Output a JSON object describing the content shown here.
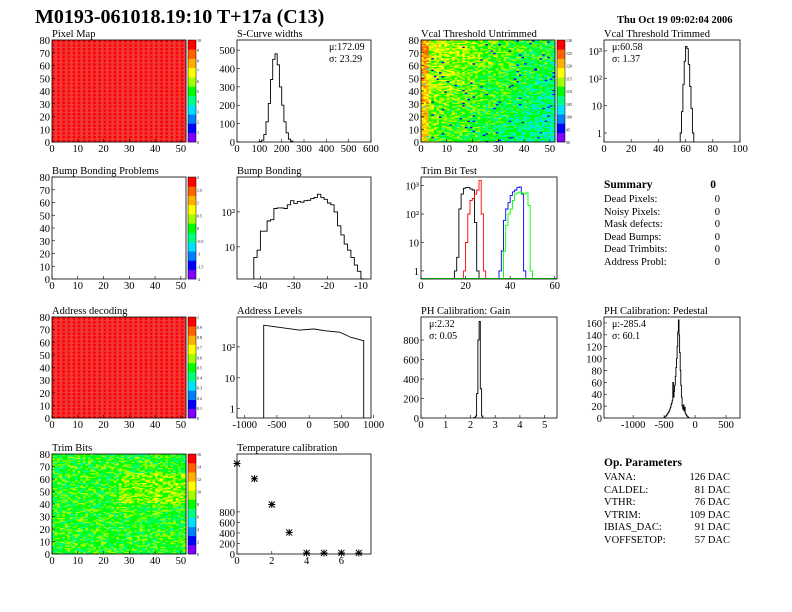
{
  "header": {
    "title": "M0193-061018.19:10 T+17a (C13)",
    "date": "Thu Oct 19 09:02:04 2006"
  },
  "colors": {
    "frame": "#000000",
    "hist": "#000000",
    "trim_series": [
      "#000000",
      "#ff0000",
      "#0000ff",
      "#00ff00"
    ],
    "palette": [
      "#8000ff",
      "#0000ff",
      "#0080ff",
      "#00e0ff",
      "#00ff80",
      "#00ff00",
      "#a0ff00",
      "#ffff00",
      "#ffb000",
      "#ff6000",
      "#ff0000"
    ]
  },
  "summary": {
    "title": "Summary",
    "total": "0",
    "rows": [
      {
        "label": "Dead Pixels:",
        "value": "0"
      },
      {
        "label": "Noisy Pixels:",
        "value": "0"
      },
      {
        "label": "Mask defects:",
        "value": "0"
      },
      {
        "label": "Dead Bumps:",
        "value": "0"
      },
      {
        "label": "Dead Trimbits:",
        "value": "0"
      },
      {
        "label": "Address Probl:",
        "value": "0"
      }
    ]
  },
  "op_parameters": {
    "title": "Op. Parameters",
    "rows": [
      {
        "label": "VANA:",
        "value": "126 DAC"
      },
      {
        "label": "CALDEL:",
        "value": "81 DAC"
      },
      {
        "label": "VTHR:",
        "value": "76 DAC"
      },
      {
        "label": "VTRIM:",
        "value": "109 DAC"
      },
      {
        "label": "IBIAS_DAC:",
        "value": "91 DAC"
      },
      {
        "label": "VOFFSETOP:",
        "value": "57 DAC"
      }
    ]
  },
  "chart_data": [
    {
      "type": "heatmap",
      "title": "Pixel Map",
      "xlim": [
        0,
        52
      ],
      "ylim": [
        0,
        80
      ],
      "xticks": [
        "0",
        "10",
        "20",
        "30",
        "40",
        "50"
      ],
      "yticks": [
        "0",
        "10",
        "20",
        "30",
        "40",
        "50",
        "60",
        "70",
        "80"
      ],
      "zlim": [
        0,
        10
      ],
      "fill": "uniform-max",
      "ztick_labels": [
        "10",
        "9",
        "8",
        "7",
        "6",
        "5",
        "4",
        "3",
        "2",
        "1",
        "0"
      ]
    },
    {
      "type": "bar",
      "title": "S-Curve widths",
      "xlim": [
        0,
        600
      ],
      "ylim": [
        0,
        555
      ],
      "xticks": [
        "0",
        "100",
        "200",
        "300",
        "400",
        "500",
        "600"
      ],
      "yticks": [
        "0",
        "100",
        "200",
        "300",
        "400",
        "500"
      ],
      "binwidth": 10,
      "stats": [
        "μ:172.09",
        "σ: 23.29"
      ],
      "series": [
        {
          "x": [
            100,
            110,
            120,
            130,
            140,
            150,
            160,
            170,
            180,
            190,
            200,
            210,
            220,
            230,
            240
          ],
          "y": [
            2,
            10,
            40,
            110,
            210,
            340,
            450,
            480,
            420,
            300,
            200,
            110,
            50,
            15,
            5
          ]
        }
      ]
    },
    {
      "type": "heatmap",
      "title": "Vcal Threshold Untrimmed",
      "xlim": [
        0,
        52
      ],
      "ylim": [
        0,
        80
      ],
      "xticks": [
        "0",
        "10",
        "20",
        "30",
        "40",
        "50"
      ],
      "yticks": [
        "0",
        "10",
        "20",
        "30",
        "40",
        "50",
        "60",
        "70",
        "80"
      ],
      "zlim": [
        85,
        130
      ],
      "fill": "gradient-noise",
      "ztick_labels": [
        "130",
        "125",
        "120",
        "115",
        "110",
        "105",
        "100",
        "95",
        "90"
      ]
    },
    {
      "type": "bar",
      "title": "Vcal Threshold Trimmed",
      "xlim": [
        0,
        100
      ],
      "ylim": [
        0.47,
        2500
      ],
      "log_y": true,
      "xticks": [
        "0",
        "20",
        "40",
        "60",
        "80",
        "100"
      ],
      "yticks": [
        "1",
        "10",
        "10²",
        "10³"
      ],
      "ytick_values": [
        1,
        10,
        100,
        1000
      ],
      "binwidth": 1,
      "stats": [
        "μ:60.58",
        "σ: 1.37"
      ],
      "series": [
        {
          "x": [
            56,
            57,
            58,
            59,
            60,
            61,
            62,
            63,
            64,
            65
          ],
          "y": [
            1,
            6,
            60,
            420,
            1450,
            1200,
            320,
            50,
            8,
            1
          ]
        }
      ]
    },
    {
      "type": "heatmap",
      "title": "Bump Bonding Problems",
      "xlim": [
        0,
        52
      ],
      "ylim": [
        0,
        80
      ],
      "xticks": [
        "0",
        "10",
        "20",
        "30",
        "40",
        "50"
      ],
      "yticks": [
        "0",
        "10",
        "20",
        "30",
        "40",
        "50",
        "60",
        "70",
        "80"
      ],
      "zlim": [
        -2,
        2
      ],
      "fill": "empty",
      "ztick_labels": [
        "2",
        "1.5",
        "1",
        "0.5",
        "0",
        "-0.5",
        "-1",
        "-1.5",
        "-2"
      ]
    },
    {
      "type": "bar",
      "title": "Bump Bonding",
      "xlim": [
        -47,
        -7
      ],
      "ylim": [
        1.2,
        1000
      ],
      "log_y": true,
      "xticks": [
        "-40",
        "-30",
        "-20",
        "-10"
      ],
      "xtick_values": [
        -40,
        -30,
        -20,
        -10
      ],
      "yticks": [
        "10",
        "10²"
      ],
      "ytick_values": [
        10,
        100
      ],
      "binwidth": 1,
      "series": [
        {
          "x": [
            -42,
            -41,
            -40,
            -39,
            -38,
            -37,
            -36,
            -35,
            -34,
            -33,
            -32,
            -31,
            -30,
            -29,
            -28,
            -27,
            -26,
            -25,
            -24,
            -23,
            -22,
            -21,
            -20,
            -19,
            -18,
            -17,
            -16,
            -15,
            -14,
            -13,
            -12,
            -11,
            -10
          ],
          "y": [
            5,
            8,
            28,
            28,
            55,
            60,
            125,
            130,
            130,
            125,
            160,
            210,
            175,
            200,
            190,
            210,
            215,
            240,
            260,
            320,
            260,
            230,
            180,
            160,
            100,
            40,
            22,
            12,
            8,
            5,
            3,
            2,
            1
          ]
        }
      ]
    },
    {
      "type": "bar",
      "title": "Trim Bit Test",
      "xlim": [
        0,
        61
      ],
      "ylim": [
        0.52,
        2000
      ],
      "log_y": true,
      "xticks": [
        "0",
        "20",
        "40",
        "60"
      ],
      "yticks": [
        "1",
        "10",
        "10²",
        "10³"
      ],
      "ytick_values": [
        1,
        10,
        100,
        1000
      ],
      "binwidth": 1,
      "series": [
        {
          "x": [
            15,
            16,
            17,
            18,
            19,
            20,
            21,
            22,
            23,
            24,
            25
          ],
          "y": [
            1,
            3,
            150,
            500,
            800,
            850,
            850,
            750,
            700,
            50,
            1
          ]
        },
        {
          "x": [
            19,
            20,
            21,
            22,
            23,
            24,
            25,
            26,
            27,
            28
          ],
          "y": [
            1,
            10,
            100,
            300,
            350,
            500,
            700,
            1500,
            100,
            1
          ]
        },
        {
          "x": [
            35,
            36,
            37,
            38,
            39,
            40,
            41,
            42,
            43,
            44,
            45,
            46
          ],
          "y": [
            1,
            5,
            60,
            150,
            250,
            450,
            600,
            700,
            850,
            900,
            500,
            1
          ]
        },
        {
          "x": [
            37,
            38,
            39,
            40,
            41,
            42,
            43,
            44,
            45,
            46,
            47,
            48,
            49
          ],
          "y": [
            5,
            40,
            100,
            150,
            300,
            500,
            550,
            600,
            550,
            500,
            550,
            200,
            1
          ]
        }
      ]
    },
    {
      "type": "heatmap",
      "title": "Address decoding",
      "xlim": [
        0,
        52
      ],
      "ylim": [
        0,
        80
      ],
      "xticks": [
        "0",
        "10",
        "20",
        "30",
        "40",
        "50"
      ],
      "yticks": [
        "0",
        "10",
        "20",
        "30",
        "40",
        "50",
        "60",
        "70",
        "80"
      ],
      "zlim": [
        0,
        1
      ],
      "fill": "uniform-max",
      "ztick_labels": [
        "1",
        "0.9",
        "0.8",
        "0.7",
        "0.6",
        "0.5",
        "0.4",
        "0.3",
        "0.2",
        "0.1",
        "0"
      ]
    },
    {
      "type": "bar",
      "title": "Address Levels",
      "xlim": [
        -1120,
        960
      ],
      "ylim": [
        0.5,
        930
      ],
      "log_y": true,
      "xticks": [
        "-1000",
        "-500",
        "0",
        "500",
        "1000"
      ],
      "xtick_values": [
        -1000,
        -500,
        0,
        500,
        1000
      ],
      "yticks": [
        "1",
        "10",
        "10²"
      ],
      "ytick_values": [
        1,
        10,
        100
      ],
      "binwidth": 12,
      "series": [
        {
          "x": [
            -705,
            -155,
            65,
            265,
            465,
            655,
            835
          ],
          "y": [
            500,
            350,
            380,
            330,
            300,
            200,
            160
          ]
        }
      ]
    },
    {
      "type": "bar",
      "title": "PH Calibration: Gain",
      "xlim": [
        0,
        5.5
      ],
      "ylim": [
        0,
        1036
      ],
      "xticks": [
        "0",
        "1",
        "2",
        "3",
        "4",
        "5"
      ],
      "yticks": [
        "0",
        "200",
        "400",
        "600",
        "800"
      ],
      "binwidth": 0.05,
      "stats": [
        "μ:2.32",
        "σ: 0.05"
      ],
      "series": [
        {
          "x": [
            2.15,
            2.2,
            2.25,
            2.3,
            2.35,
            2.4,
            2.45
          ],
          "y": [
            5,
            20,
            250,
            800,
            990,
            300,
            20
          ]
        }
      ]
    },
    {
      "type": "bar",
      "title": "PH Calibration: Pedestal",
      "xlim": [
        -1470,
        725
      ],
      "ylim": [
        0,
        170
      ],
      "xticks": [
        "-1000",
        "-500",
        "0",
        "500"
      ],
      "xtick_values": [
        -1000,
        -500,
        0,
        500
      ],
      "yticks": [
        "0",
        "20",
        "40",
        "60",
        "80",
        "100",
        "120",
        "140",
        "160"
      ],
      "binwidth": 10,
      "stats": [
        "μ:-285.4",
        "σ: 60.1"
      ],
      "series": [
        {
          "x": [
            -500,
            -490,
            -480,
            -470,
            -460,
            -450,
            -440,
            -430,
            -420,
            -410,
            -400,
            -390,
            -380,
            -370,
            -360,
            -350,
            -340,
            -330,
            -320,
            -310,
            -300,
            -290,
            -280,
            -270,
            -260,
            -250,
            -240,
            -230,
            -220,
            -210,
            -200,
            -190,
            -180,
            -170,
            -160,
            -150,
            -140,
            -130,
            -120,
            -110
          ],
          "y": [
            1,
            2,
            2,
            4,
            5,
            7,
            8,
            10,
            12,
            15,
            18,
            22,
            25,
            30,
            60,
            35,
            45,
            55,
            70,
            85,
            100,
            120,
            145,
            165,
            140,
            110,
            80,
            55,
            35,
            20,
            15,
            22,
            12,
            18,
            8,
            6,
            4,
            3,
            2,
            1
          ]
        }
      ]
    },
    {
      "type": "scatter",
      "title": "Temperature calibration",
      "xlim": [
        0,
        7.7
      ],
      "ylim": [
        0,
        1900
      ],
      "xticks": [
        "0",
        "2",
        "4",
        "6"
      ],
      "xtick_values": [
        0,
        2,
        4,
        6
      ],
      "yticks": [
        "0",
        "200",
        "400",
        "600",
        "800"
      ],
      "ytick_values": [
        0,
        200,
        400,
        600,
        800
      ],
      "marker": "star",
      "x": [
        0,
        1,
        2,
        3,
        4,
        5,
        6,
        7
      ],
      "y": [
        1720,
        1430,
        940,
        410,
        20,
        20,
        20,
        20
      ]
    },
    {
      "type": "heatmap",
      "title": "Trim Bits",
      "xlim": [
        0,
        52
      ],
      "ylim": [
        0,
        80
      ],
      "xticks": [
        "0",
        "10",
        "20",
        "30",
        "40",
        "50"
      ],
      "yticks": [
        "0",
        "10",
        "20",
        "30",
        "40",
        "50",
        "60",
        "70",
        "80"
      ],
      "zlim": [
        0,
        16
      ],
      "fill": "green-noise",
      "ztick_labels": [
        "16",
        "14",
        "12",
        "10",
        "8",
        "6",
        "4",
        "2",
        "0"
      ]
    }
  ]
}
